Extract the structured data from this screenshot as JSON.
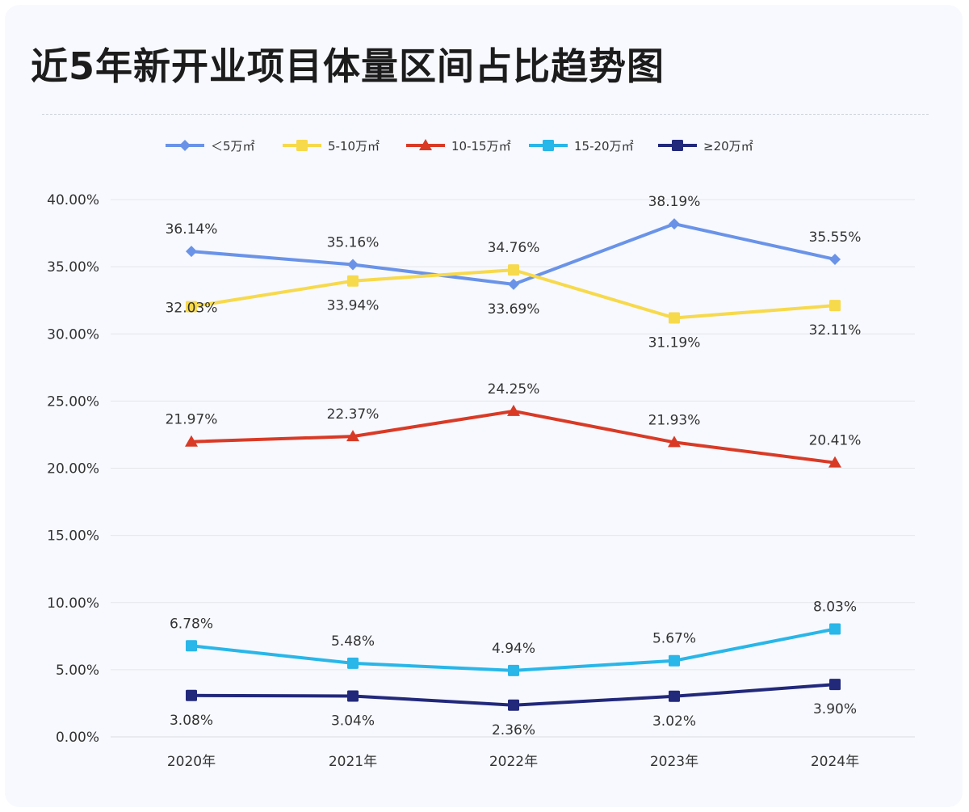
{
  "title": "近5年新开业项目体量区间占比趋势图",
  "chart_data": {
    "type": "line",
    "title": "近5年新开业项目体量区间占比趋势图",
    "categories": [
      "2020年",
      "2021年",
      "2022年",
      "2023年",
      "2024年"
    ],
    "y_ticks": [
      "0.00%",
      "5.00%",
      "10.00%",
      "15.00%",
      "20.00%",
      "25.00%",
      "30.00%",
      "35.00%",
      "40.00%"
    ],
    "ylim": [
      0,
      40
    ],
    "grid": true,
    "legend_position": "top",
    "series": [
      {
        "name": "＜5万㎡",
        "color": "#6a93e8",
        "marker": "diamond",
        "values": [
          36.14,
          35.16,
          33.69,
          38.19,
          35.55
        ],
        "labels": [
          "36.14%",
          "35.16%",
          "33.69%",
          "38.19%",
          "35.55%"
        ],
        "label_side": [
          "above",
          "above",
          "below",
          "above",
          "above"
        ]
      },
      {
        "name": "5-10万㎡",
        "color": "#f7d94c",
        "marker": "square",
        "values": [
          32.03,
          33.94,
          34.76,
          31.19,
          32.11
        ],
        "labels": [
          "32.03%",
          "33.94%",
          "34.76%",
          "31.19%",
          "32.11%"
        ],
        "label_side": [
          "center",
          "below",
          "above",
          "below",
          "below"
        ]
      },
      {
        "name": "10-15万㎡",
        "color": "#d93a26",
        "marker": "triangle",
        "values": [
          21.97,
          22.37,
          24.25,
          21.93,
          20.41
        ],
        "labels": [
          "21.97%",
          "22.37%",
          "24.25%",
          "21.93%",
          "20.41%"
        ],
        "label_side": [
          "above",
          "above",
          "above",
          "above",
          "above"
        ]
      },
      {
        "name": "15-20万㎡",
        "color": "#29b6e8",
        "marker": "square",
        "values": [
          6.78,
          5.48,
          4.94,
          5.67,
          8.03
        ],
        "labels": [
          "6.78%",
          "5.48%",
          "4.94%",
          "5.67%",
          "8.03%"
        ],
        "label_side": [
          "above",
          "above",
          "above",
          "above",
          "above"
        ]
      },
      {
        "name": "≥20万㎡",
        "color": "#22287a",
        "marker": "square",
        "values": [
          3.08,
          3.04,
          2.36,
          3.02,
          3.9
        ],
        "labels": [
          "3.08%",
          "3.04%",
          "2.36%",
          "3.02%",
          "3.90%"
        ],
        "label_side": [
          "below",
          "below",
          "below",
          "below",
          "below"
        ]
      }
    ]
  }
}
